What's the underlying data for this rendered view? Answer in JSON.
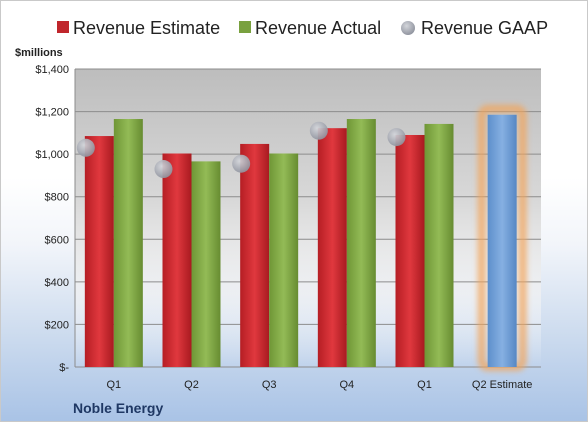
{
  "chart_data": {
    "type": "bar",
    "company": "Noble Energy",
    "ylabel": "$millions",
    "ylim": [
      0,
      1400
    ],
    "yticks": [
      "$-",
      "$200",
      "$400",
      "$600",
      "$800",
      "$1,000",
      "$1,200",
      "$1,400"
    ],
    "ytick_values": [
      0,
      200,
      400,
      600,
      800,
      1000,
      1200,
      1400
    ],
    "categories": [
      "Q1",
      "Q2",
      "Q3",
      "Q4",
      "Q1",
      "Q2 Estimate"
    ],
    "series": [
      {
        "name": "Revenue Estimate",
        "color": "#c0262c",
        "values": [
          1085,
          1003,
          1048,
          1122,
          1090,
          null
        ]
      },
      {
        "name": "Revenue Actual",
        "color": "#79a13f",
        "values": [
          1165,
          966,
          1003,
          1165,
          1142,
          null
        ]
      },
      {
        "name": "Revenue GAAP",
        "color": "#a0a4ad",
        "values": [
          1030,
          930,
          955,
          1110,
          1080,
          null
        ]
      }
    ],
    "highlight": {
      "category": "Q2 Estimate",
      "value": 1185,
      "color": "#6f9fd8",
      "glow": "#f2a55c"
    },
    "grid": true,
    "legend": "top"
  }
}
